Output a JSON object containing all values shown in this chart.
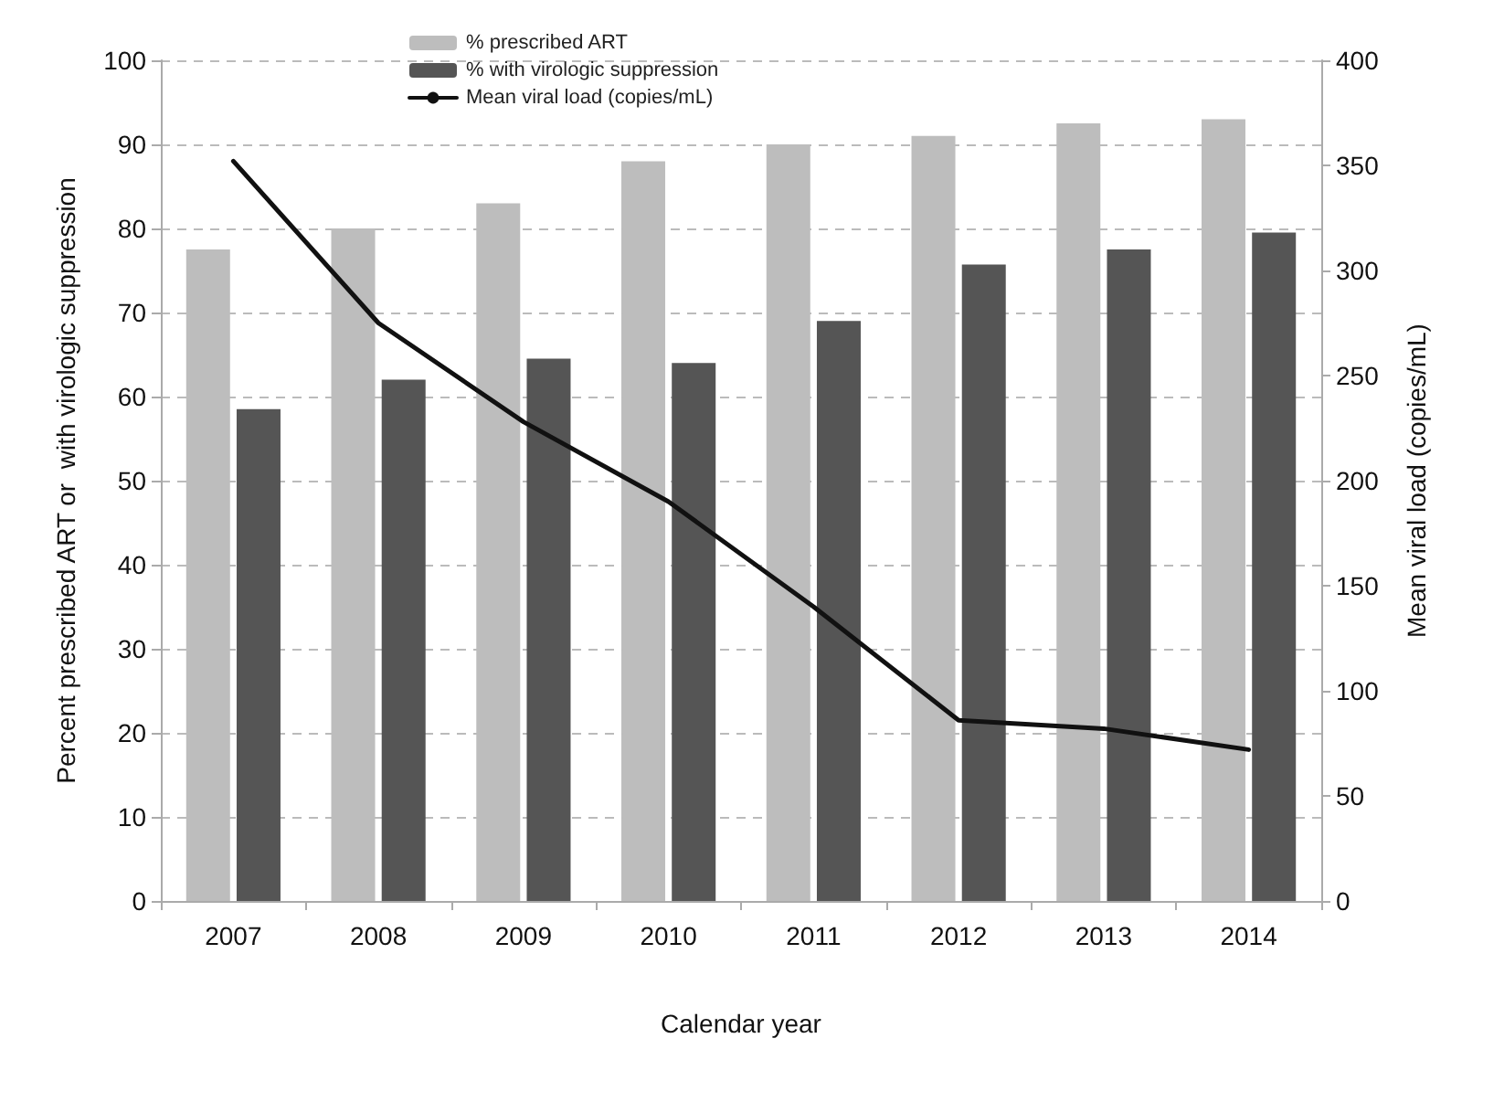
{
  "chart_data": {
    "type": "bar",
    "xlabel": "Calendar year",
    "ylabel": "Percent prescribed ART or  with virologic suppression",
    "y2label": "Mean viral load (copies/mL)",
    "categories": [
      "2007",
      "2008",
      "2009",
      "2010",
      "2011",
      "2012",
      "2013",
      "2014"
    ],
    "series": [
      {
        "name": "% prescribed ART",
        "color": "#bdbdbd",
        "values": [
          77.5,
          80,
          83,
          88,
          90,
          91,
          92.5,
          93
        ]
      },
      {
        "name": "% with virologic suppression",
        "color": "#555555",
        "values": [
          58.5,
          62,
          64.5,
          64,
          69,
          75.7,
          77.5,
          79.5
        ]
      },
      {
        "name": "Mean viral load (copies/mL)",
        "type": "line",
        "axis": "y2",
        "color": "#111111",
        "values": [
          352,
          275,
          228,
          190,
          140,
          86,
          82,
          72
        ]
      }
    ],
    "ylim": [
      0,
      100
    ],
    "yticks": [
      0,
      10,
      20,
      30,
      40,
      50,
      60,
      70,
      80,
      90,
      100
    ],
    "y2lim": [
      0,
      400
    ],
    "y2ticks": [
      0,
      50,
      100,
      150,
      200,
      250,
      300,
      350,
      400
    ],
    "grid": "y",
    "legend": "top",
    "marker": "none",
    "line_style": "solid"
  }
}
